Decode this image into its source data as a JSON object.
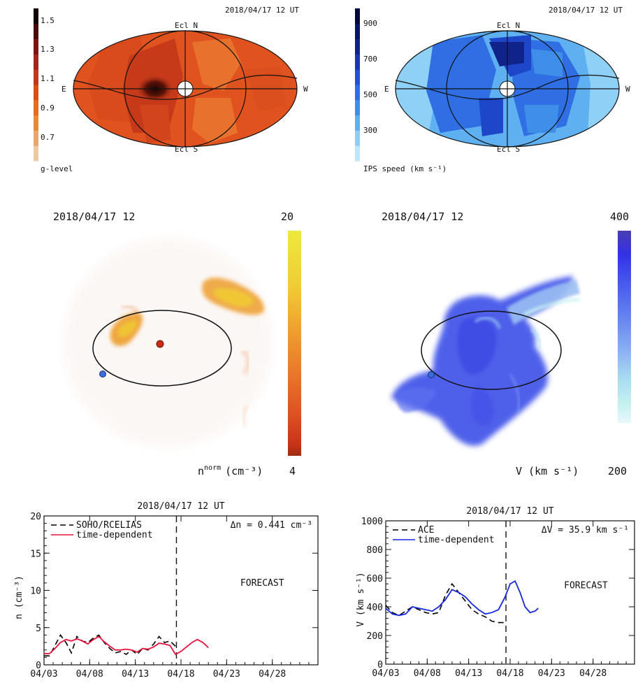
{
  "skymaps": [
    {
      "id": "g",
      "timestamp": "2018/04/17 12 UT",
      "colorbar_ticks": [
        "1.5",
        "1.3",
        "1.1",
        "0.9",
        "0.7"
      ],
      "colorbar_label": "g-level",
      "colorbar_colors": [
        "#ecc9a0",
        "#e9a56a",
        "#e78a3c",
        "#e36c22",
        "#d84f16",
        "#c0391c",
        "#a1241d",
        "#7e1515",
        "#4a0a0c",
        "#120505"
      ],
      "labels": {
        "top": "Ecl N",
        "bottom": "Ecl S",
        "left": "E",
        "right": "W"
      },
      "map_colors": {
        "base": "#e0531f",
        "dark": "#c63a1a",
        "light": "#e8712e",
        "core": "#2a0806"
      }
    },
    {
      "id": "v",
      "timestamp": "2018/04/17 12 UT",
      "colorbar_ticks": [
        "900",
        "700",
        "500",
        "300"
      ],
      "colorbar_label": "IPS speed (km s⁻¹)",
      "colorbar_colors": [
        "#bfe6fb",
        "#8fcdf7",
        "#5fb0f1",
        "#3f8fe9",
        "#2f6fe3",
        "#2450d0",
        "#1a36b0",
        "#10238a",
        "#091565",
        "#03083a"
      ],
      "labels": {
        "top": "Ecl N",
        "bottom": "Ecl S",
        "left": "E",
        "right": "W"
      },
      "map_colors": {
        "base": "#3b86ec",
        "dark": "#1e46c8",
        "light": "#8fd0f7",
        "core": "#0a1a66"
      }
    }
  ],
  "helio": [
    {
      "id": "density",
      "timestamp": "2018/04/17 12",
      "colorbar_max": "20",
      "colorbar_min": "4",
      "quantity": "nnorm (cm⁻³)",
      "quantity_main": "n",
      "quantity_sup": "norm",
      "quantity_unit": "(cm⁻³)",
      "colorbar_colors": [
        "#eee93c",
        "#f0cc33",
        "#ee9e2e",
        "#e8742a",
        "#de4f22",
        "#c8331a",
        "#a02a12"
      ],
      "earth_color": "#3c6be0",
      "sun_color": "#cc2a14"
    },
    {
      "id": "velocity",
      "timestamp": "2018/04/17 12",
      "colorbar_max": "400",
      "colorbar_min": "200",
      "quantity": "V (km s⁻¹)",
      "colorbar_colors": [
        "#4a3fb0",
        "#3330e8",
        "#4b60ee",
        "#6f90f0",
        "#90b8f2",
        "#a9dff2",
        "#c4f0f0",
        "#e8f8fb"
      ],
      "earth_color": "#3c6be0"
    }
  ],
  "chart_data": [
    {
      "type": "line",
      "title": "2018/04/17 12 UT",
      "ylabel": "n (cm⁻³)",
      "xlabel": "",
      "xlim": [
        0,
        30
      ],
      "ylim": [
        0,
        20
      ],
      "yticks": [
        0,
        5,
        10,
        15,
        20
      ],
      "xticks": [
        {
          "x": 0,
          "label": "04/03"
        },
        {
          "x": 5,
          "label": "04/08"
        },
        {
          "x": 10,
          "label": "04/13"
        },
        {
          "x": 15,
          "label": "04/18"
        },
        {
          "x": 20,
          "label": "04/23"
        },
        {
          "x": 25,
          "label": "04/28"
        }
      ],
      "now_x": 14.5,
      "annotation": "Δn = 0.441 cm⁻³",
      "forecast_label": "FORECAST",
      "legend_position": "top-left",
      "series": [
        {
          "name": "SOHO/RCELIAS",
          "style": "dashed",
          "color": "#000000",
          "x": [
            0,
            0.6,
            1.2,
            1.8,
            2.4,
            3.0,
            3.6,
            4.2,
            4.8,
            5.4,
            6.0,
            6.6,
            7.2,
            7.8,
            8.4,
            9.0,
            9.6,
            10.2,
            10.8,
            11.4,
            12.0,
            12.6,
            13.2,
            13.8,
            14.4
          ],
          "y": [
            1.2,
            1.2,
            2.6,
            4.0,
            3.0,
            1.6,
            3.8,
            3.2,
            3.0,
            3.6,
            4.0,
            3.0,
            2.2,
            1.6,
            1.8,
            1.4,
            2.0,
            1.4,
            2.2,
            2.0,
            2.8,
            3.8,
            3.0,
            3.2,
            2.5
          ]
        },
        {
          "name": "time-dependent",
          "style": "solid",
          "color": "#e8123c",
          "x": [
            0,
            0.6,
            1.2,
            1.8,
            2.4,
            3.0,
            3.6,
            4.2,
            4.8,
            5.4,
            6.0,
            6.6,
            7.2,
            7.8,
            8.4,
            9.0,
            9.6,
            10.2,
            10.8,
            11.4,
            12.0,
            12.6,
            13.2,
            13.8,
            14.4,
            15.0,
            15.6,
            16.2,
            16.8,
            17.4,
            18.0
          ],
          "y": [
            1.5,
            1.5,
            2.2,
            3.0,
            3.4,
            3.2,
            3.5,
            3.2,
            2.8,
            3.4,
            3.8,
            3.1,
            2.5,
            2.0,
            2.0,
            2.1,
            2.0,
            1.7,
            2.2,
            2.1,
            2.4,
            2.9,
            2.8,
            2.6,
            1.4,
            1.8,
            2.4,
            3.0,
            3.4,
            3.0,
            2.3
          ]
        }
      ]
    },
    {
      "type": "line",
      "title": "2018/04/17 12 UT",
      "ylabel": "V (km s⁻¹)",
      "xlabel": "",
      "xlim": [
        0,
        30
      ],
      "ylim": [
        0,
        1000
      ],
      "yticks": [
        0,
        200,
        400,
        600,
        800,
        1000
      ],
      "xticks": [
        {
          "x": 0,
          "label": "04/03"
        },
        {
          "x": 5,
          "label": "04/08"
        },
        {
          "x": 10,
          "label": "04/13"
        },
        {
          "x": 15,
          "label": "04/18"
        },
        {
          "x": 20,
          "label": "04/23"
        },
        {
          "x": 25,
          "label": "04/28"
        }
      ],
      "now_x": 14.5,
      "annotation": "ΔV = 35.9 km s⁻¹",
      "forecast_label": "FORECAST",
      "legend_position": "top-left",
      "series": [
        {
          "name": "ACE",
          "style": "dashed",
          "color": "#000000",
          "x": [
            0,
            0.8,
            1.6,
            2.4,
            3.2,
            4.0,
            4.8,
            5.6,
            6.4,
            7.2,
            8.0,
            8.8,
            9.6,
            10.4,
            11.2,
            12.0,
            12.8,
            13.6,
            14.4
          ],
          "y": [
            410,
            360,
            340,
            370,
            400,
            380,
            360,
            350,
            360,
            480,
            560,
            500,
            440,
            380,
            350,
            330,
            300,
            290,
            290
          ]
        },
        {
          "name": "time-dependent",
          "style": "solid",
          "color": "#1428e0",
          "x": [
            0,
            0.8,
            1.6,
            2.4,
            3.2,
            4.0,
            4.8,
            5.6,
            6.4,
            7.2,
            8.0,
            8.8,
            9.6,
            10.4,
            11.2,
            12.0,
            12.8,
            13.6,
            14.4,
            15.0,
            15.6,
            16.2,
            16.8,
            17.4,
            18.0,
            18.4
          ],
          "y": [
            390,
            350,
            340,
            350,
            400,
            390,
            380,
            370,
            400,
            450,
            520,
            500,
            470,
            420,
            380,
            350,
            360,
            380,
            470,
            560,
            580,
            500,
            400,
            360,
            370,
            390
          ]
        }
      ]
    }
  ]
}
